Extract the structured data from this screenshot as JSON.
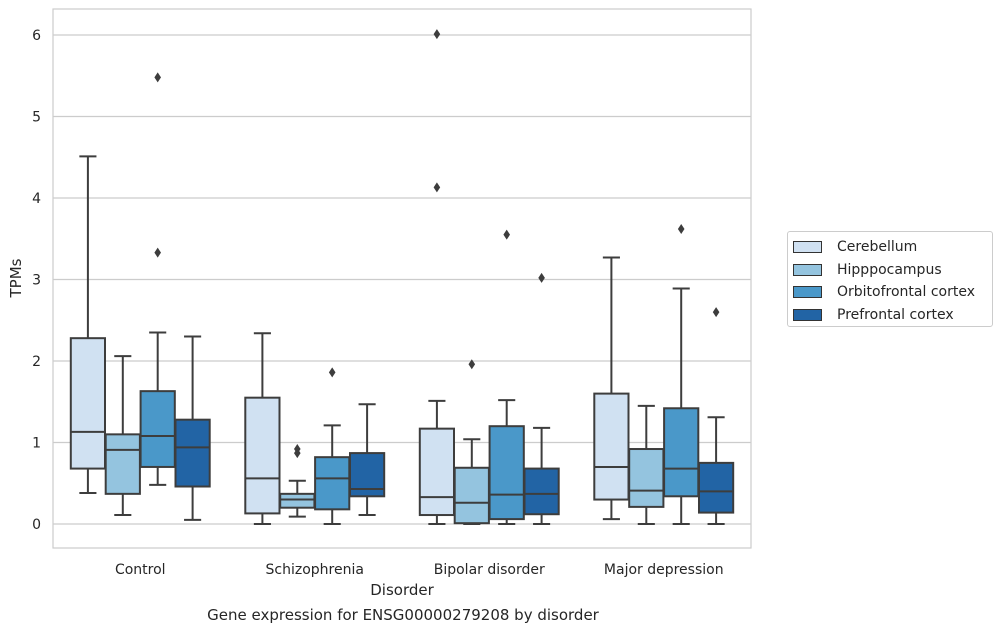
{
  "caption": "Gene expression for ENSG00000279208 by disorder",
  "chart_data": {
    "type": "box",
    "title": "",
    "xlabel": "Disorder",
    "ylabel": "TPMs",
    "ylim": [
      -0.29,
      6.32
    ],
    "yticks": [
      0,
      1,
      2,
      3,
      4,
      5,
      6
    ],
    "grid": "horizontal",
    "legend_position": "right, outside plot",
    "categories": [
      "Control",
      "Schizophrenia",
      "Bipolar disorder",
      "Major depression"
    ],
    "series": [
      {
        "name": "Cerebellum",
        "color": "#d0e1f2",
        "boxes": [
          {
            "whisker_low": 0.38,
            "q1": 0.68,
            "median": 1.13,
            "q3": 2.28,
            "whisker_high": 4.51,
            "outliers": []
          },
          {
            "whisker_low": 0.0,
            "q1": 0.13,
            "median": 0.56,
            "q3": 1.55,
            "whisker_high": 2.34,
            "outliers": []
          },
          {
            "whisker_low": 0.0,
            "q1": 0.11,
            "median": 0.33,
            "q3": 1.17,
            "whisker_high": 1.51,
            "outliers": [
              4.13,
              6.01
            ]
          },
          {
            "whisker_low": 0.06,
            "q1": 0.3,
            "median": 0.7,
            "q3": 1.6,
            "whisker_high": 3.27,
            "outliers": []
          }
        ]
      },
      {
        "name": "Hipppocampus",
        "color": "#94c4df",
        "boxes": [
          {
            "whisker_low": 0.11,
            "q1": 0.37,
            "median": 0.91,
            "q3": 1.1,
            "whisker_high": 2.06,
            "outliers": []
          },
          {
            "whisker_low": 0.09,
            "q1": 0.2,
            "median": 0.3,
            "q3": 0.37,
            "whisker_high": 0.53,
            "outliers": [
              0.87,
              0.92
            ]
          },
          {
            "whisker_low": 0.0,
            "q1": 0.01,
            "median": 0.26,
            "q3": 0.69,
            "whisker_high": 1.04,
            "outliers": [
              1.96
            ]
          },
          {
            "whisker_low": 0.0,
            "q1": 0.21,
            "median": 0.41,
            "q3": 0.92,
            "whisker_high": 1.45,
            "outliers": []
          }
        ]
      },
      {
        "name": "Orbitofrontal cortex",
        "color": "#4a98c9",
        "boxes": [
          {
            "whisker_low": 0.48,
            "q1": 0.7,
            "median": 1.08,
            "q3": 1.63,
            "whisker_high": 2.35,
            "outliers": [
              3.33,
              5.48
            ]
          },
          {
            "whisker_low": 0.0,
            "q1": 0.18,
            "median": 0.56,
            "q3": 0.82,
            "whisker_high": 1.21,
            "outliers": [
              1.86
            ]
          },
          {
            "whisker_low": 0.0,
            "q1": 0.06,
            "median": 0.36,
            "q3": 1.2,
            "whisker_high": 1.52,
            "outliers": [
              3.55
            ]
          },
          {
            "whisker_low": 0.0,
            "q1": 0.34,
            "median": 0.68,
            "q3": 1.42,
            "whisker_high": 2.89,
            "outliers": [
              3.62
            ]
          }
        ]
      },
      {
        "name": "Prefrontal cortex",
        "color": "#2264a5",
        "boxes": [
          {
            "whisker_low": 0.05,
            "q1": 0.46,
            "median": 0.94,
            "q3": 1.28,
            "whisker_high": 2.3,
            "outliers": []
          },
          {
            "whisker_low": 0.11,
            "q1": 0.34,
            "median": 0.43,
            "q3": 0.87,
            "whisker_high": 1.47,
            "outliers": []
          },
          {
            "whisker_low": 0.0,
            "q1": 0.12,
            "median": 0.37,
            "q3": 0.68,
            "whisker_high": 1.18,
            "outliers": [
              3.02
            ]
          },
          {
            "whisker_low": 0.0,
            "q1": 0.14,
            "median": 0.4,
            "q3": 0.75,
            "whisker_high": 1.31,
            "outliers": [
              2.6
            ]
          }
        ]
      }
    ]
  }
}
